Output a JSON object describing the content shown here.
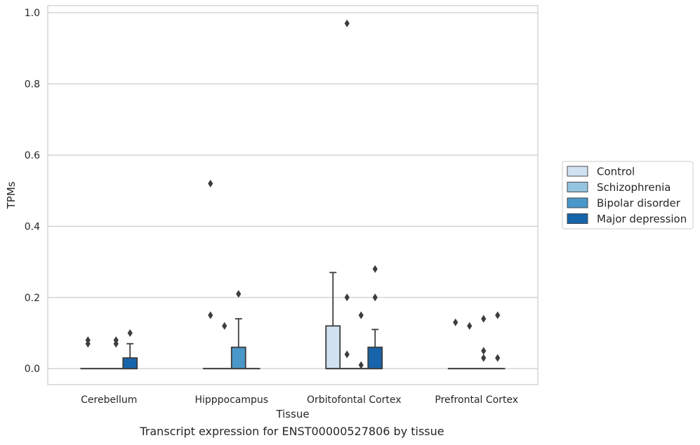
{
  "caption": "Transcript expression for ENST00000527806 by tissue",
  "chart_data": {
    "type": "box",
    "xlabel": "Tissue",
    "ylabel": "TPMs",
    "ylim": [
      -0.045,
      1.02
    ],
    "yticks": [
      0.0,
      0.2,
      0.4,
      0.6,
      0.8,
      1.0
    ],
    "ytick_labels": [
      "0.0",
      "0.2",
      "0.4",
      "0.6",
      "0.8",
      "1.0"
    ],
    "grid": "horizontal",
    "legend_position": "right",
    "categories": [
      "Cerebellum",
      "Hipppocampus",
      "Orbitofontal Cortex",
      "Prefrontal Cortex"
    ],
    "series": [
      {
        "name": "Control",
        "color": "#d0e1f2",
        "boxes": [
          {
            "q1": 0,
            "median": 0,
            "q3": 0,
            "whislo": 0,
            "whishi": 0,
            "fliers": [
              0.07,
              0.08
            ]
          },
          {
            "q1": 0,
            "median": 0,
            "q3": 0,
            "whislo": 0,
            "whishi": 0,
            "fliers": [
              0.15,
              0.52
            ]
          },
          {
            "q1": 0,
            "median": 0,
            "q3": 0.12,
            "whislo": 0,
            "whishi": 0.27,
            "fliers": []
          },
          {
            "q1": 0,
            "median": 0,
            "q3": 0,
            "whislo": 0,
            "whishi": 0,
            "fliers": [
              0.13
            ]
          }
        ]
      },
      {
        "name": "Schizophrenia",
        "color": "#94c4df",
        "boxes": [
          {
            "q1": 0,
            "median": 0,
            "q3": 0,
            "whislo": 0,
            "whishi": 0,
            "fliers": []
          },
          {
            "q1": 0,
            "median": 0,
            "q3": 0,
            "whislo": 0,
            "whishi": 0,
            "fliers": [
              0.12
            ]
          },
          {
            "q1": 0,
            "median": 0,
            "q3": 0,
            "whislo": 0,
            "whishi": 0,
            "fliers": [
              0.04,
              0.2,
              0.97
            ]
          },
          {
            "q1": 0,
            "median": 0,
            "q3": 0,
            "whislo": 0,
            "whishi": 0,
            "fliers": [
              0.12
            ]
          }
        ]
      },
      {
        "name": "Bipolar disorder",
        "color": "#4a98c9",
        "boxes": [
          {
            "q1": 0,
            "median": 0,
            "q3": 0,
            "whislo": 0,
            "whishi": 0,
            "fliers": [
              0.07,
              0.08
            ]
          },
          {
            "q1": 0,
            "median": 0,
            "q3": 0.06,
            "whislo": 0,
            "whishi": 0.14,
            "fliers": [
              0.21
            ]
          },
          {
            "q1": 0,
            "median": 0,
            "q3": 0,
            "whislo": 0,
            "whishi": 0,
            "fliers": [
              0.01,
              0.15
            ]
          },
          {
            "q1": 0,
            "median": 0,
            "q3": 0,
            "whislo": 0,
            "whishi": 0,
            "fliers": [
              0.03,
              0.05,
              0.14
            ]
          }
        ]
      },
      {
        "name": "Major depression",
        "color": "#1764ab",
        "boxes": [
          {
            "q1": 0,
            "median": 0,
            "q3": 0.03,
            "whislo": 0,
            "whishi": 0.07,
            "fliers": [
              0.1
            ]
          },
          {
            "q1": 0,
            "median": 0,
            "q3": 0,
            "whislo": 0,
            "whishi": 0,
            "fliers": []
          },
          {
            "q1": 0,
            "median": 0,
            "q3": 0.06,
            "whislo": 0,
            "whishi": 0.11,
            "fliers": [
              0.2,
              0.28
            ]
          },
          {
            "q1": 0,
            "median": 0,
            "q3": 0,
            "whislo": 0,
            "whishi": 0,
            "fliers": [
              0.03,
              0.15
            ]
          }
        ]
      }
    ]
  }
}
